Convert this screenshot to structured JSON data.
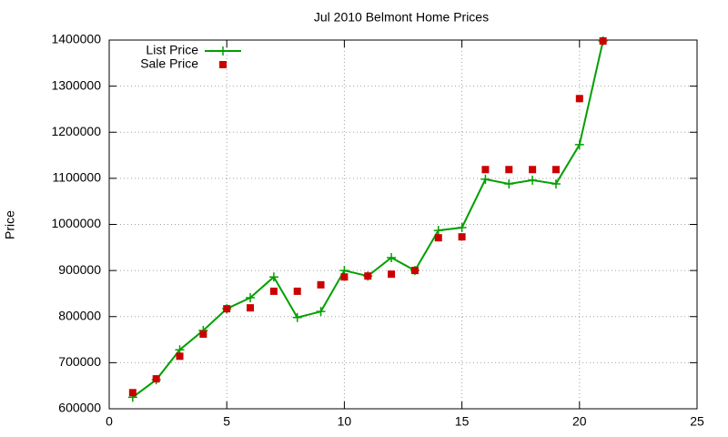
{
  "chart_data": {
    "type": "line",
    "title": "Jul 2010 Belmont Home Prices",
    "y_label": "Price",
    "x": [
      1,
      2,
      3,
      4,
      5,
      6,
      7,
      8,
      9,
      10,
      11,
      12,
      13,
      14,
      15,
      16,
      17,
      18,
      19,
      20,
      21
    ],
    "series": [
      {
        "name": "List Price",
        "color": "#00a000",
        "style": "linespoints",
        "values": [
          625000,
          663000,
          728000,
          770000,
          817000,
          841000,
          886000,
          798000,
          811000,
          900000,
          888000,
          928000,
          900000,
          987000,
          993000,
          1098000,
          1088000,
          1096000,
          1088000,
          1173000,
          1398000
        ]
      },
      {
        "name": "Sale Price",
        "color": "#cc0000",
        "style": "points",
        "values": [
          635000,
          665000,
          714000,
          762000,
          817000,
          819000,
          855000,
          855000,
          869000,
          886000,
          888000,
          892000,
          900000,
          971000,
          973000,
          1119000,
          1119000,
          1119000,
          1119000,
          1273000,
          1398000
        ]
      }
    ],
    "xlim": [
      0,
      25
    ],
    "xticks": [
      0,
      5,
      10,
      15,
      20,
      25
    ],
    "ylim": [
      600000,
      1400000
    ],
    "yticks": [
      600000,
      700000,
      800000,
      900000,
      1000000,
      1100000,
      1200000,
      1300000,
      1400000
    ],
    "grid": true,
    "legend": "top-left"
  }
}
